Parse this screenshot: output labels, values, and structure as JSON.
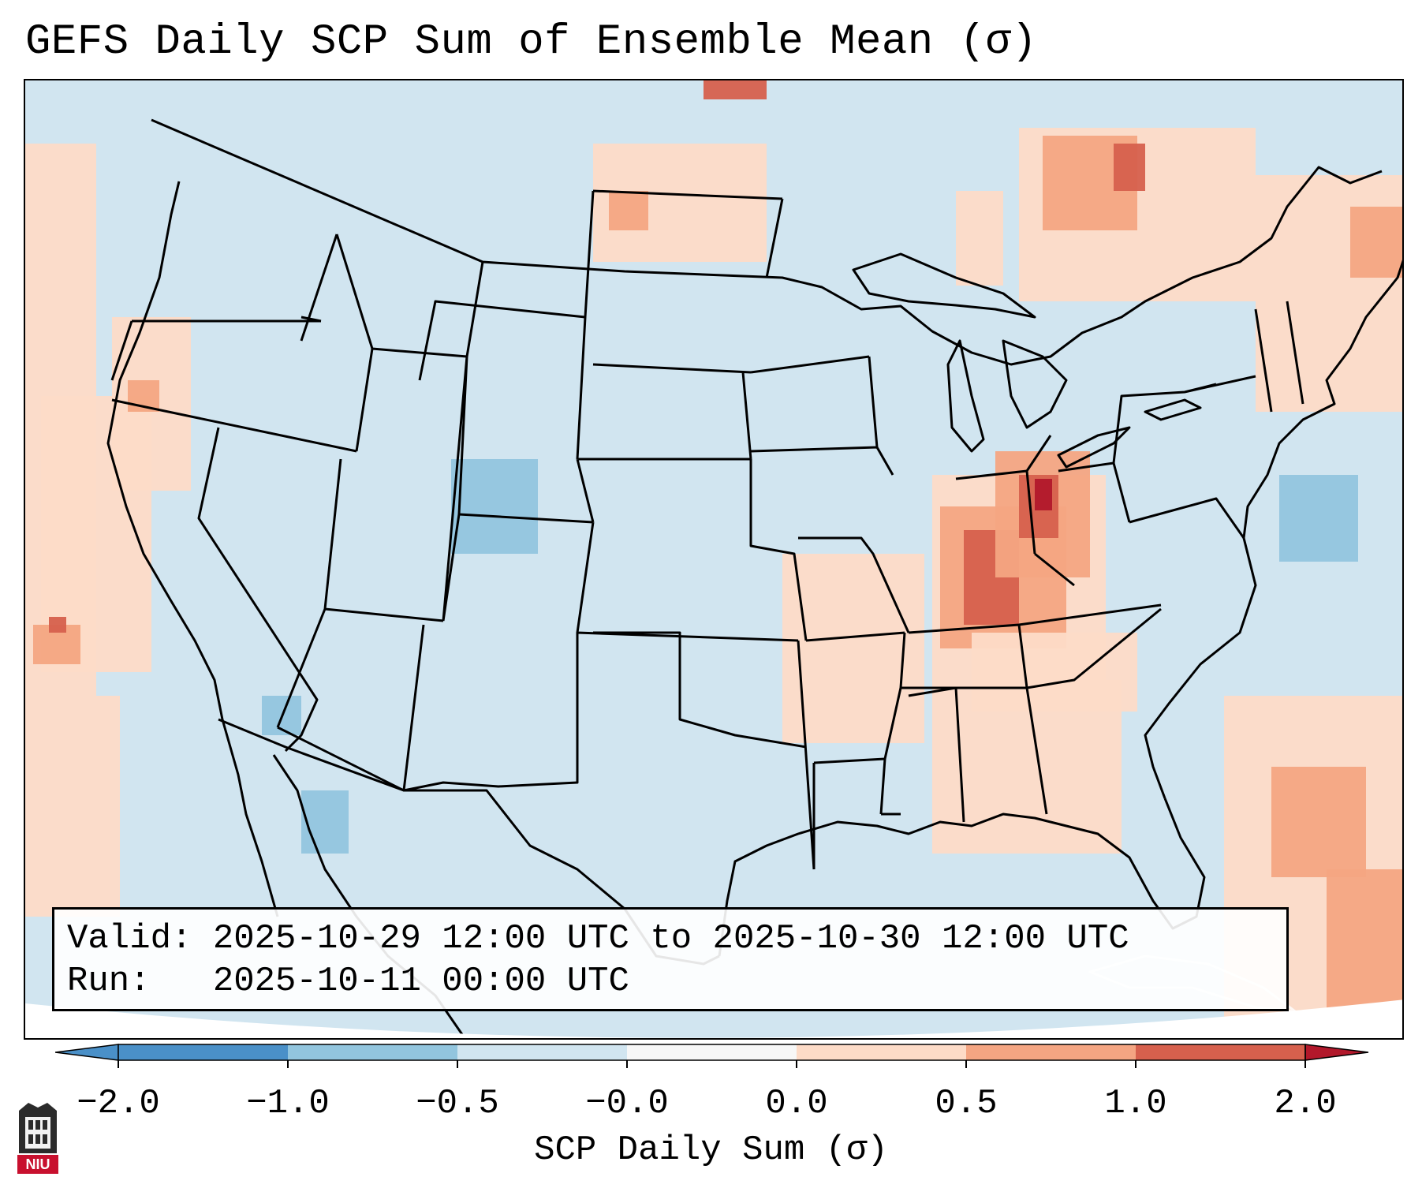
{
  "title": "GEFS Daily SCP Sum of Ensemble Mean (σ)",
  "info": {
    "valid_label": "Valid:",
    "valid_value": "2025-10-29 12:00 UTC to 2025-10-30 12:00 UTC",
    "run_label": "Run:",
    "run_value": "2025-10-11 00:00 UTC"
  },
  "colorbar": {
    "label": "SCP Daily Sum (σ)",
    "ticks": [
      "−2.0",
      "−1.0",
      "−0.5",
      "−0.0",
      "0.0",
      "0.5",
      "1.0",
      "2.0"
    ],
    "colors": [
      "#4a90c8",
      "#92c5de",
      "#d1e5f0",
      "#f7f7f7",
      "#fddbc7",
      "#f4a582",
      "#d6604d",
      "#b2182b"
    ]
  },
  "map": {
    "background": "#d1e5f0",
    "outside_color": "#ffffff",
    "map_colors": {
      "light_red": "#fddbc7",
      "medium_red": "#f4a582",
      "red": "#d6604d",
      "dark_red": "#b2182b",
      "light_blue": "#92c5de"
    }
  },
  "logo": {
    "text": "NIU",
    "color": "#c8102e"
  }
}
